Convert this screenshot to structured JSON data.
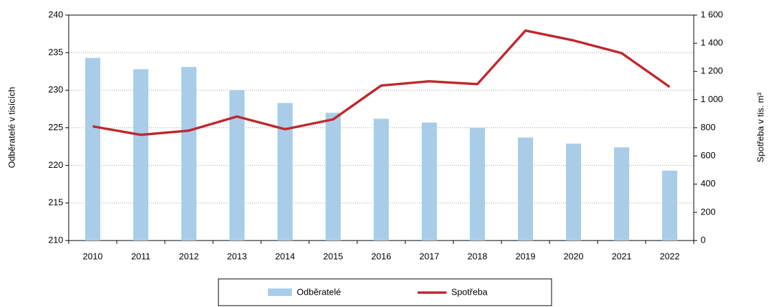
{
  "chart_data": {
    "type": "bar_line",
    "categories": [
      "2010",
      "2011",
      "2012",
      "2013",
      "2014",
      "2015",
      "2016",
      "2017",
      "2018",
      "2019",
      "2020",
      "2021",
      "2022"
    ],
    "series": [
      {
        "name": "Odběratelé",
        "color": "#a9cde9",
        "type": "bar",
        "axis": "y",
        "values": [
          234.3,
          232.8,
          233.1,
          230.0,
          228.3,
          227.0,
          226.2,
          225.7,
          225.0,
          223.7,
          222.9,
          222.4,
          219.3
        ]
      },
      {
        "name": "Spotřeba",
        "color": "#c0272d",
        "type": "line",
        "axis": "y2",
        "values": [
          810,
          750,
          780,
          880,
          790,
          860,
          1100,
          1130,
          1110,
          1490,
          1420,
          1330,
          1090
        ]
      }
    ],
    "ylabel": "Odběratelé v tisících",
    "y2label": "Spotřeba v tis. m³",
    "ylim": [
      210,
      240
    ],
    "yticks": [
      210,
      215,
      220,
      225,
      230,
      235,
      240
    ],
    "y2lim": [
      0,
      1600
    ],
    "y2ticks": [
      0,
      200,
      400,
      600,
      800,
      {
        "value": 1000,
        "label": "1 000"
      },
      {
        "value": 1200,
        "label": "1 200"
      },
      {
        "value": 1400,
        "label": "1 400"
      },
      {
        "value": 1600,
        "label": "1 600"
      }
    ],
    "grid": true,
    "legend": "bottom"
  }
}
